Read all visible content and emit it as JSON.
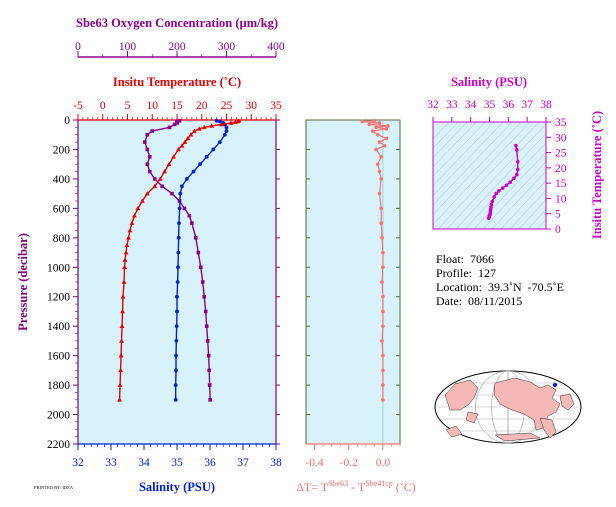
{
  "colors": {
    "oxygen": "#8B008B",
    "temperature": "#e60000",
    "salinity": "#0022cc",
    "dt": "#ff7070",
    "ts_axes": "#cc00cc",
    "pressure": "#800080",
    "panel_bg": "#d7f2fb",
    "frame_green": "#556b2f",
    "ocean": "#ffffff",
    "land": "#f6b7b7"
  },
  "axes": {
    "oxygen_label": "Sbe63 Oxygen Concentration (µm/kg)",
    "oxygen_ticks": [
      "0",
      "100",
      "200",
      "300",
      "400"
    ],
    "temperature_label": "Insitu Temperature (˚C)",
    "temperature_ticks": [
      "-5",
      "0",
      "5",
      "10",
      "15",
      "20",
      "25",
      "30",
      "35"
    ],
    "salinity_label": "Salinity (PSU)",
    "salinity_ticks": [
      "32",
      "33",
      "34",
      "35",
      "36",
      "37",
      "38"
    ],
    "pressure_label": "Pressure (decibar)",
    "pressure_ticks": [
      "0",
      "200",
      "400",
      "600",
      "800",
      "1000",
      "1200",
      "1400",
      "1600",
      "1800",
      "2000",
      "2200"
    ],
    "dt_label_prefix": "ΔT= T",
    "dt_sup1": "Sbe63",
    "dt_mid": " - T",
    "dt_sup2": "Sbe41cp",
    "dt_label_suffix": " (˚C)",
    "dt_ticks": [
      "-0.4",
      "-0.2",
      "0.0"
    ],
    "ts_salinity_label": "Salinity (PSU)",
    "ts_salinity_ticks": [
      "32",
      "33",
      "34",
      "35",
      "36",
      "37",
      "38"
    ],
    "ts_temp_label": "Insitu Temperature (˚C)",
    "ts_temp_ticks": [
      "0",
      "5",
      "10",
      "15",
      "20",
      "25",
      "30",
      "35"
    ]
  },
  "info": {
    "float": "Float:  7066",
    "profile": "Profile:  127",
    "location": "Location:  39.3˚N  -70.5˚E",
    "date": "Date:  08/11/2015"
  },
  "footer_tag": "PRINTED BY: IDEA",
  "chart_data": [
    {
      "type": "line",
      "title": "",
      "ylabel": "Pressure (decibar)",
      "ylim": [
        2200,
        0
      ],
      "series": [
        {
          "name": "Insitu Temperature (˚C)",
          "xlim": [
            -5,
            35
          ],
          "pressure": [
            5,
            10,
            15,
            20,
            30,
            40,
            50,
            60,
            75,
            100,
            125,
            150,
            175,
            200,
            250,
            300,
            350,
            400,
            450,
            500,
            550,
            600,
            650,
            700,
            750,
            800,
            850,
            900,
            950,
            1000,
            1100,
            1200,
            1300,
            1400,
            1500,
            1600,
            1700,
            1800,
            1900
          ],
          "x": [
            27.5,
            27.3,
            26.8,
            25.9,
            24.0,
            22.0,
            20.5,
            19.5,
            18.5,
            17.8,
            17.2,
            16.6,
            16.0,
            15.3,
            14.3,
            13.4,
            12.5,
            11.6,
            10.5,
            9.0,
            8.0,
            7.1,
            6.4,
            5.9,
            5.5,
            5.2,
            4.9,
            4.7,
            4.5,
            4.4,
            4.3,
            4.1,
            4.0,
            3.9,
            3.8,
            3.7,
            3.6,
            3.5,
            3.4
          ]
        },
        {
          "name": "Salinity (PSU)",
          "xlim": [
            32,
            38
          ],
          "pressure": [
            5,
            10,
            20,
            30,
            50,
            75,
            100,
            150,
            200,
            250,
            300,
            350,
            400,
            450,
            500,
            600,
            700,
            800,
            900,
            1000,
            1100,
            1200,
            1300,
            1400,
            1500,
            1600,
            1700,
            1800,
            1900
          ],
          "x": [
            36.2,
            36.3,
            36.4,
            36.45,
            36.5,
            36.5,
            36.45,
            36.3,
            36.1,
            35.9,
            35.7,
            35.5,
            35.3,
            35.15,
            35.1,
            35.08,
            35.06,
            35.05,
            35.04,
            35.03,
            35.02,
            35.0,
            35.0,
            34.99,
            34.98,
            34.97,
            34.97,
            34.96,
            34.96
          ]
        },
        {
          "name": "Sbe63 Oxygen Concentration (µm/kg)",
          "xlim": [
            0,
            400
          ],
          "pressure": [
            5,
            10,
            20,
            30,
            50,
            75,
            100,
            150,
            200,
            250,
            300,
            350,
            400,
            450,
            500,
            550,
            600,
            650,
            700,
            800,
            900,
            1000,
            1100,
            1200,
            1300,
            1400,
            1500,
            1600,
            1700,
            1800,
            1900
          ],
          "x": [
            205,
            200,
            200,
            195,
            185,
            150,
            140,
            135,
            140,
            145,
            140,
            145,
            155,
            170,
            190,
            205,
            215,
            225,
            230,
            238,
            243,
            248,
            252,
            255,
            258,
            260,
            262,
            264,
            265,
            266,
            267
          ]
        }
      ]
    },
    {
      "type": "line",
      "title": "",
      "xlabel": "ΔT= T Sbe63 - T Sbe41cp (˚C)",
      "ylim": [
        2200,
        0
      ],
      "xlim": [
        -0.45,
        0.1
      ],
      "series": [
        {
          "name": "ΔT",
          "pressure": [
            5,
            10,
            20,
            30,
            40,
            50,
            60,
            75,
            100,
            125,
            150,
            175,
            200,
            250,
            300,
            350,
            400,
            500,
            600,
            700,
            800,
            900,
            1000,
            1100,
            1200,
            1300,
            1400,
            1500,
            1600,
            1700,
            1800,
            1900
          ],
          "x": [
            -0.05,
            -0.12,
            -0.02,
            -0.08,
            0.03,
            -0.04,
            0.02,
            -0.06,
            -0.03,
            0.02,
            -0.02,
            0.01,
            -0.04,
            -0.01,
            -0.03,
            -0.02,
            -0.01,
            -0.02,
            -0.01,
            -0.01,
            -0.005,
            0.0,
            0.0,
            -0.005,
            0.0,
            0.0,
            0.0,
            -0.005,
            0.0,
            0.0,
            0.0,
            0.0
          ]
        }
      ]
    },
    {
      "type": "scatter",
      "title": "",
      "xlabel": "Salinity (PSU)",
      "ylabel": "Insitu Temperature (˚C)",
      "xlim": [
        32,
        38
      ],
      "ylim": [
        0,
        35
      ],
      "series": [
        {
          "name": "T-S",
          "salinity": [
            36.4,
            36.45,
            36.5,
            36.5,
            36.45,
            36.3,
            36.1,
            35.9,
            35.7,
            35.5,
            35.35,
            35.25,
            35.15,
            35.1,
            35.08,
            35.06,
            35.05,
            35.04,
            35.03,
            35.0,
            34.99,
            34.98,
            34.97,
            34.96
          ],
          "temperature": [
            27.3,
            25.9,
            22.0,
            19.5,
            17.8,
            16.6,
            15.3,
            14.3,
            13.4,
            12.5,
            11.6,
            10.5,
            9.0,
            8.0,
            7.1,
            6.4,
            5.9,
            5.2,
            4.7,
            4.4,
            4.1,
            3.9,
            3.7,
            3.5
          ]
        }
      ]
    }
  ]
}
